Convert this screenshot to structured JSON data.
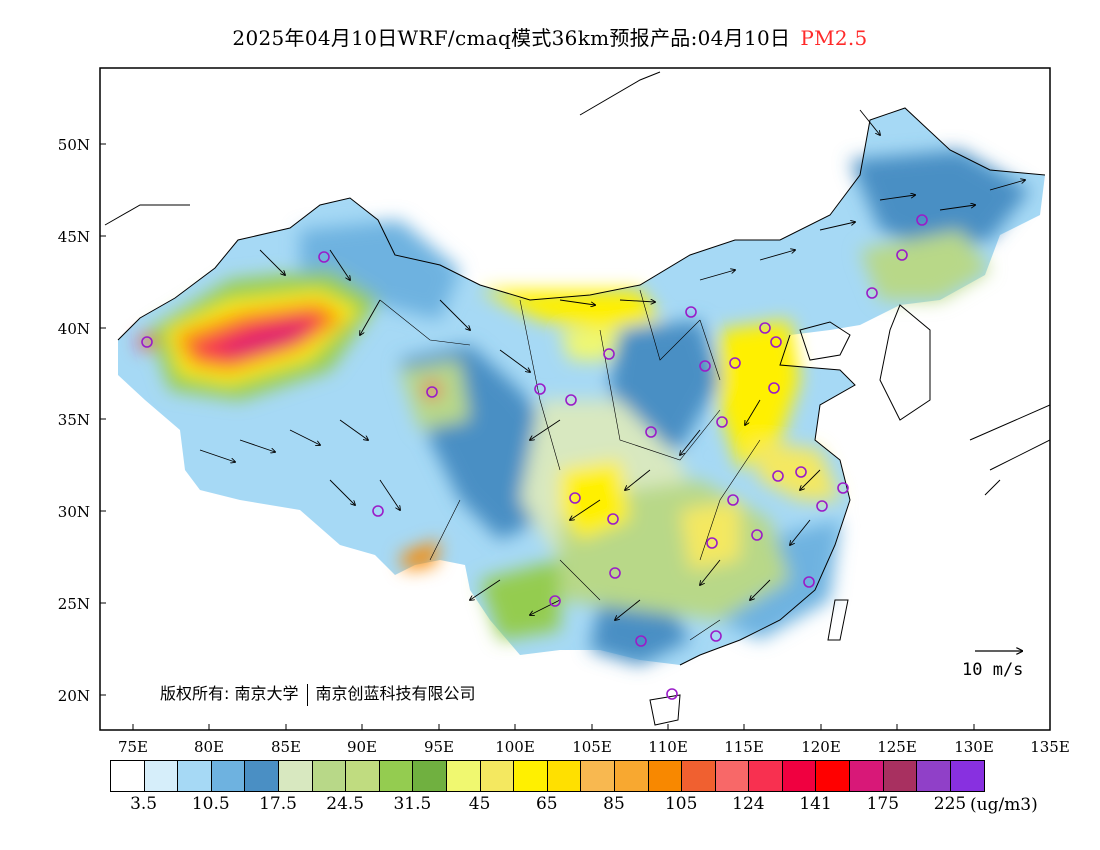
{
  "title": {
    "main": "2025年04月10日WRF/cmaq模式36km预报产品:04月10日",
    "pollutant": "PM2.5"
  },
  "axes": {
    "lat_labels": [
      "50N",
      "45N",
      "40N",
      "35N",
      "30N",
      "25N",
      "20N"
    ],
    "lon_labels": [
      "75E",
      "80E",
      "85E",
      "90E",
      "95E",
      "100E",
      "105E",
      "110E",
      "115E",
      "120E",
      "125E",
      "130E",
      "135E"
    ]
  },
  "copyright": {
    "label": "版权所有:",
    "org1": "南京大学",
    "org2": "南京创蓝科技有限公司"
  },
  "wind_reference": {
    "label": "10 m/s"
  },
  "colorbar": {
    "colors": [
      "#ffffff",
      "#d6eefa",
      "#a6d9f5",
      "#6eb2e0",
      "#4a8fc4",
      "#d8e8c0",
      "#b8d888",
      "#c0dc80",
      "#94cc50",
      "#70b040",
      "#f0f870",
      "#f4e860",
      "#fff000",
      "#ffe000",
      "#f8b850",
      "#f8a830",
      "#f88800",
      "#f06030",
      "#f86868",
      "#f83050",
      "#f00040",
      "#ff0000",
      "#d81878",
      "#a83060",
      "#9040c8",
      "#8830e0"
    ],
    "tick_labels": [
      "3.5",
      "10.5",
      "17.5",
      "24.5",
      "31.5",
      "45",
      "65",
      "85",
      "105",
      "124",
      "141",
      "175",
      "225"
    ],
    "unit": "(ug/m3)"
  }
}
